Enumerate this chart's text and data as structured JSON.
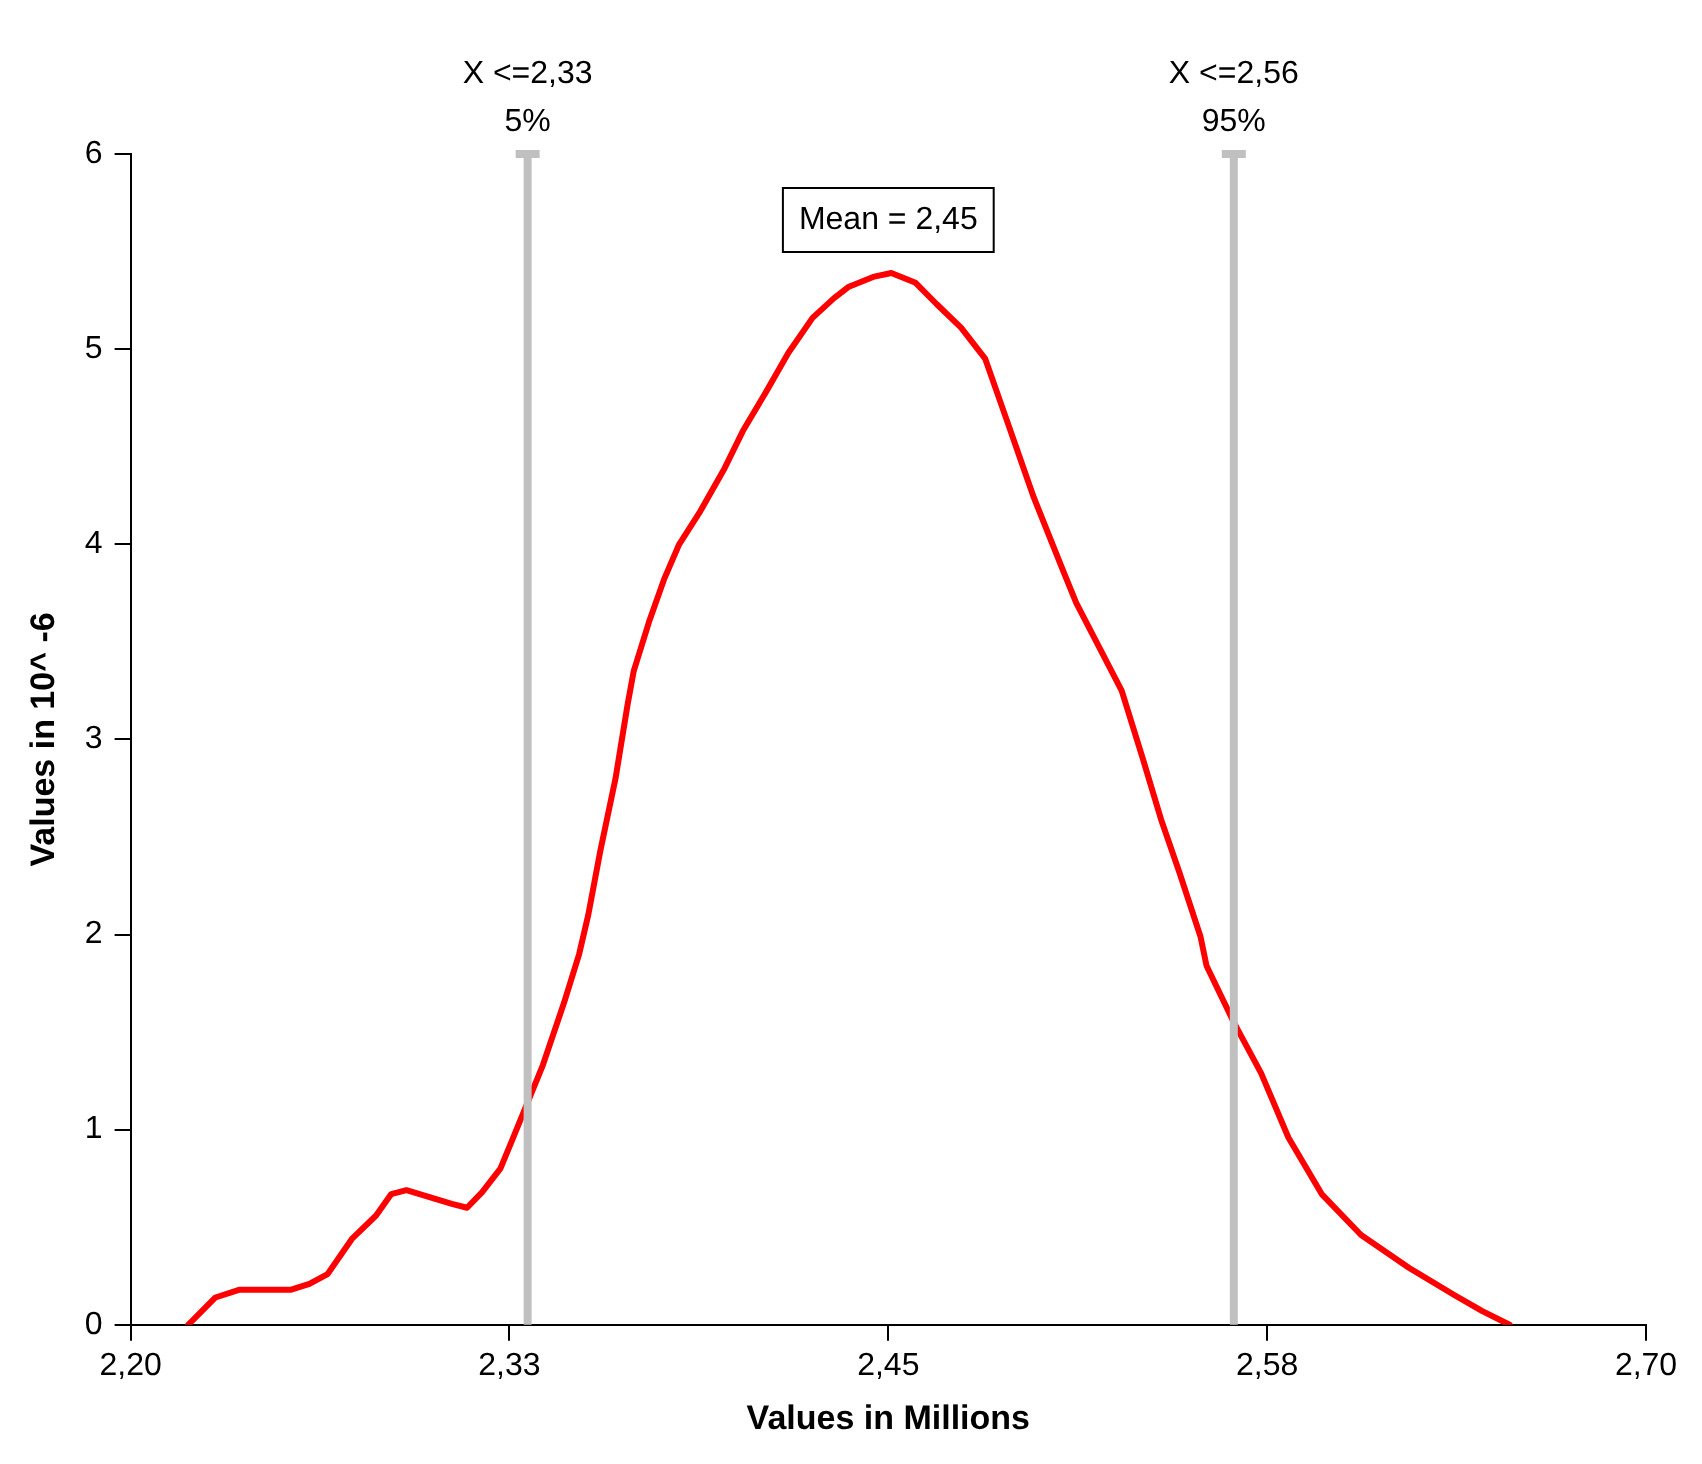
{
  "chart_data": {
    "type": "line",
    "xlabel": "Values in Millions",
    "ylabel": "Values in 10^ -6",
    "x": [
      2.219,
      2.228,
      2.236,
      2.253,
      2.259,
      2.265,
      2.273,
      2.281,
      2.286,
      2.291,
      2.306,
      2.311,
      2.316,
      2.322,
      2.326,
      2.331,
      2.336,
      2.343,
      2.348,
      2.351,
      2.355,
      2.36,
      2.364,
      2.366,
      2.371,
      2.376,
      2.381,
      2.388,
      2.396,
      2.402,
      2.41,
      2.417,
      2.425,
      2.432,
      2.437,
      2.445,
      2.451,
      2.459,
      2.466,
      2.474,
      2.482,
      2.489,
      2.498,
      2.507,
      2.512,
      2.527,
      2.534,
      2.54,
      2.546,
      2.553,
      2.555,
      2.564,
      2.573,
      2.582,
      2.593,
      2.606,
      2.622,
      2.637,
      2.646,
      2.655
    ],
    "series": [
      {
        "color": "#ff0000",
        "values": [
          0,
          0.14,
          0.18,
          0.18,
          0.21,
          0.26,
          0.44,
          0.56,
          0.67,
          0.69,
          0.62,
          0.6,
          0.68,
          0.8,
          0.95,
          1.14,
          1.33,
          1.65,
          1.9,
          2.1,
          2.43,
          2.8,
          3.18,
          3.35,
          3.6,
          3.82,
          4.0,
          4.17,
          4.39,
          4.58,
          4.79,
          4.98,
          5.16,
          5.26,
          5.32,
          5.37,
          5.39,
          5.34,
          5.23,
          5.11,
          4.95,
          4.64,
          4.24,
          3.89,
          3.7,
          3.25,
          2.9,
          2.59,
          2.32,
          1.99,
          1.84,
          1.55,
          1.29,
          0.96,
          0.67,
          0.46,
          0.29,
          0.15,
          0.07,
          0
        ]
      }
    ],
    "xlim": [
      2.2,
      2.7
    ],
    "xticks": [
      {
        "value": 2.2,
        "label": "2,20"
      },
      {
        "value": 2.325,
        "label": "2,33"
      },
      {
        "value": 2.45,
        "label": "2,45"
      },
      {
        "value": 2.575,
        "label": "2,58"
      },
      {
        "value": 2.7,
        "label": "2,70"
      }
    ],
    "ylim": [
      0,
      6
    ],
    "yticks": [
      0,
      1,
      2,
      3,
      4,
      5,
      6
    ],
    "ref_lines": [
      {
        "axis": "x",
        "value": 2.331,
        "label": "X <=2,33\n5%",
        "color": "#c0c0c0"
      },
      {
        "axis": "x",
        "value": 2.564,
        "label": "X <=2,56\n95%",
        "color": "#c0c0c0"
      }
    ],
    "annotations": [
      "Mean = 2,45"
    ],
    "grid": false,
    "legend": false,
    "marker": "none",
    "line_style": "solid"
  }
}
